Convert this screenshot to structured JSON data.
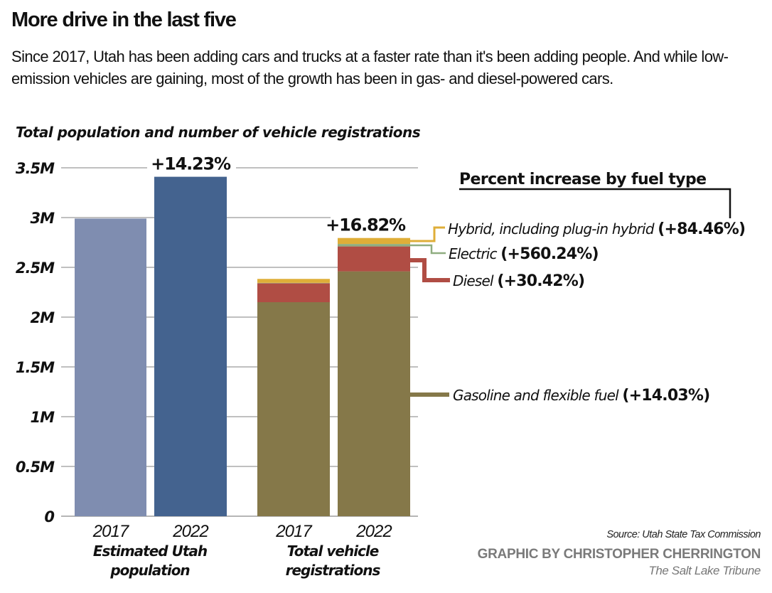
{
  "header": {
    "title": "More drive in the last five",
    "subtitle": "Since 2017, Utah has been adding cars and trucks at a faster rate than it's been adding people. And while low-emission vehicles are gaining, most of the growth has been in gas- and diesel-powered cars."
  },
  "colors": {
    "pop_2017": "#7f8db0",
    "pop_2022": "#44638f",
    "gasoline": "#857849",
    "diesel": "#b04d44",
    "electric": "#8fad80",
    "hybrid": "#dfae38",
    "grid": "#9a9a9a"
  },
  "chart_data": {
    "type": "bar",
    "title": "Total population and number of vehicle registrations",
    "xlabel": "",
    "ylabel": "",
    "ylim": [
      0,
      3.5
    ],
    "y_unit": "millions",
    "yticks": [
      0,
      0.5,
      1,
      1.5,
      2,
      2.5,
      3,
      3.5
    ],
    "ytick_labels": [
      "0",
      "0.5M",
      "1M",
      "1.5M",
      "2M",
      "2.5M",
      "3M",
      "3.5M"
    ],
    "grid": true,
    "groups": [
      {
        "label_line1": "Estimated Utah",
        "label_line2": "population",
        "change_label": "+14.23%",
        "bars": [
          {
            "year": "2017",
            "color_key": "pop_2017",
            "segments": [
              {
                "name": "Population",
                "value": 2.99
              }
            ]
          },
          {
            "year": "2022",
            "color_key": "pop_2022",
            "segments": [
              {
                "name": "Population",
                "value": 3.41
              }
            ]
          }
        ]
      },
      {
        "label_line1": "Total vehicle",
        "label_line2": "registrations",
        "change_label": "+16.82%",
        "bars": [
          {
            "year": "2017",
            "segments": [
              {
                "name": "Gasoline and flexible fuel",
                "color_key": "gasoline",
                "value": 2.15
              },
              {
                "name": "Diesel",
                "color_key": "diesel",
                "value": 0.19
              },
              {
                "name": "Electric",
                "color_key": "electric",
                "value": 0.004
              },
              {
                "name": "Hybrid, including plug-in hybrid",
                "color_key": "hybrid",
                "value": 0.04
              }
            ]
          },
          {
            "year": "2022",
            "segments": [
              {
                "name": "Gasoline and flexible fuel",
                "color_key": "gasoline",
                "value": 2.46
              },
              {
                "name": "Diesel",
                "color_key": "diesel",
                "value": 0.25
              },
              {
                "name": "Electric",
                "color_key": "electric",
                "value": 0.025
              },
              {
                "name": "Hybrid, including plug-in hybrid",
                "color_key": "hybrid",
                "value": 0.06
              }
            ]
          }
        ]
      }
    ],
    "legend": {
      "title": "Percent increase by fuel type",
      "placement": "right",
      "items": [
        {
          "name": "Hybrid, including plug-in hybrid",
          "change": "(+84.46%)",
          "color_key": "hybrid"
        },
        {
          "name": "Electric",
          "change": "(+560.24%)",
          "color_key": "electric"
        },
        {
          "name": "Diesel",
          "change": "(+30.42%)",
          "color_key": "diesel"
        },
        {
          "name": "Gasoline and flexible fuel",
          "change": "(+14.03%)",
          "color_key": "gasoline"
        }
      ]
    }
  },
  "footer": {
    "source": "Source: Utah State Tax Commission",
    "credit": "GRAPHIC BY CHRISTOPHER CHERRINGTON",
    "publication": "The Salt Lake Tribune"
  }
}
